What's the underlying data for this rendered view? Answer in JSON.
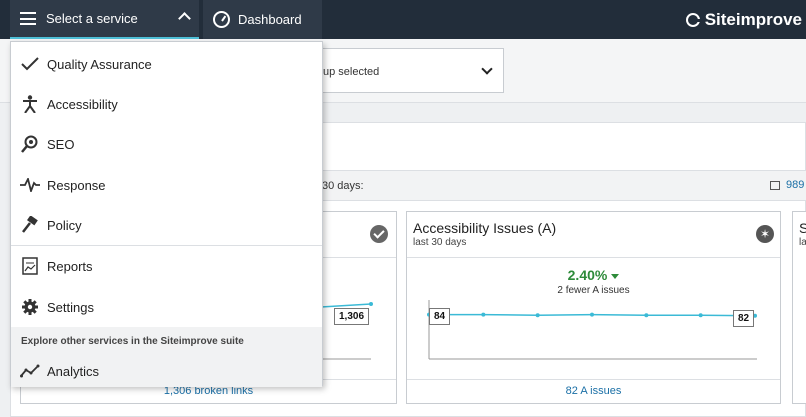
{
  "topbar": {
    "service_button_label": "Select a service",
    "dashboard_button_label": "Dashboard",
    "logo_text": "Siteimprove"
  },
  "filter": {
    "group_select_value": "up selected"
  },
  "summary": {
    "period_text": "30 days:",
    "count_link": "989"
  },
  "cards": [
    {
      "title": "",
      "value_label": "1,306",
      "footer_link": "1,306 broken links"
    },
    {
      "title": "Accessibility Issues (A)",
      "subtitle": "last 30 days",
      "change": "2.40%",
      "change_text": "2 fewer A issues",
      "start_label": "84",
      "end_label": "82",
      "footer_link": "82 A issues",
      "chart_data": {
        "type": "line",
        "x": [
          1,
          2,
          3,
          4,
          5,
          6,
          7
        ],
        "values": [
          84,
          84,
          83,
          84,
          83,
          83,
          82
        ],
        "ylim": [
          0,
          100
        ],
        "grid": false
      }
    },
    {
      "title": "S",
      "subtitle": "la"
    }
  ],
  "menu": {
    "items": [
      {
        "label": "Quality Assurance",
        "icon": "checkmark-icon"
      },
      {
        "label": "Accessibility",
        "icon": "accessibility-icon"
      },
      {
        "label": "SEO",
        "icon": "seo-icon"
      },
      {
        "label": "Response",
        "icon": "pulse-icon"
      },
      {
        "label": "Policy",
        "icon": "gavel-icon"
      },
      {
        "label": "Reports",
        "icon": "reports-icon"
      },
      {
        "label": "Settings",
        "icon": "gear-icon"
      }
    ],
    "explore_heading": "Explore other services in the Siteimprove suite",
    "explore_items": [
      {
        "label": "Analytics",
        "icon": "analytics-icon"
      }
    ]
  },
  "colors": {
    "topbar": "#222d3a",
    "accent": "#4fc0d8",
    "positive": "#2e8b3a",
    "link": "#1a6fa6"
  }
}
